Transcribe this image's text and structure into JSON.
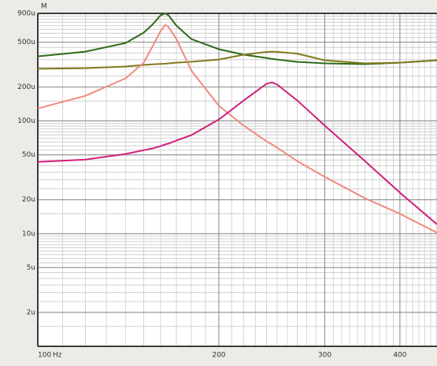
{
  "chart_data": {
    "type": "line",
    "y_label": "M",
    "x_unit": "Hz",
    "x": [
      100,
      120,
      140,
      150,
      155,
      160,
      163,
      165,
      170,
      180,
      200,
      220,
      240,
      245,
      250,
      270,
      300,
      350,
      400,
      461
    ],
    "series": [
      {
        "color": "#2e6a18",
        "values": [
          374,
          412,
          492,
          607,
          713,
          865,
          900,
          865,
          702,
          533,
          433,
          387,
          362,
          355,
          351,
          334,
          324,
          319,
          329,
          345
        ]
      },
      {
        "color": "#807a1c",
        "values": [
          290,
          294,
          304,
          314,
          318,
          320,
          322,
          324,
          329,
          335,
          351,
          387,
          409,
          412,
          410,
          396,
          345,
          324,
          329,
          345
        ]
      },
      {
        "color": "#f08a80",
        "values": [
          129,
          167,
          239,
          329,
          454,
          627,
          713,
          680,
          533,
          280,
          136,
          90.8,
          66,
          62,
          57.8,
          44,
          31.9,
          20.6,
          15,
          10.2
        ]
      },
      {
        "color": "#d0207a",
        "values": [
          43.3,
          45.4,
          50.9,
          55,
          57,
          59.7,
          62,
          63,
          67,
          74.8,
          103,
          152,
          213,
          220,
          210,
          152,
          90.8,
          44,
          23.1,
          12.1
        ]
      }
    ],
    "log_x": true,
    "log_y": true,
    "xlim": [
      100,
      461
    ],
    "xticks": [
      100,
      200,
      300,
      400
    ],
    "ylim": [
      1,
      900
    ],
    "yticks": [
      {
        "value": 2,
        "label": "2u"
      },
      {
        "value": 5,
        "label": "5u"
      },
      {
        "value": 10,
        "label": "10u"
      },
      {
        "value": 20,
        "label": "20u"
      },
      {
        "value": 50,
        "label": "50u"
      },
      {
        "value": 100,
        "label": "100u"
      },
      {
        "value": 200,
        "label": "200u"
      },
      {
        "value": 500,
        "label": "500u"
      },
      {
        "value": 900,
        "label": "900u"
      }
    ],
    "grid": true
  }
}
